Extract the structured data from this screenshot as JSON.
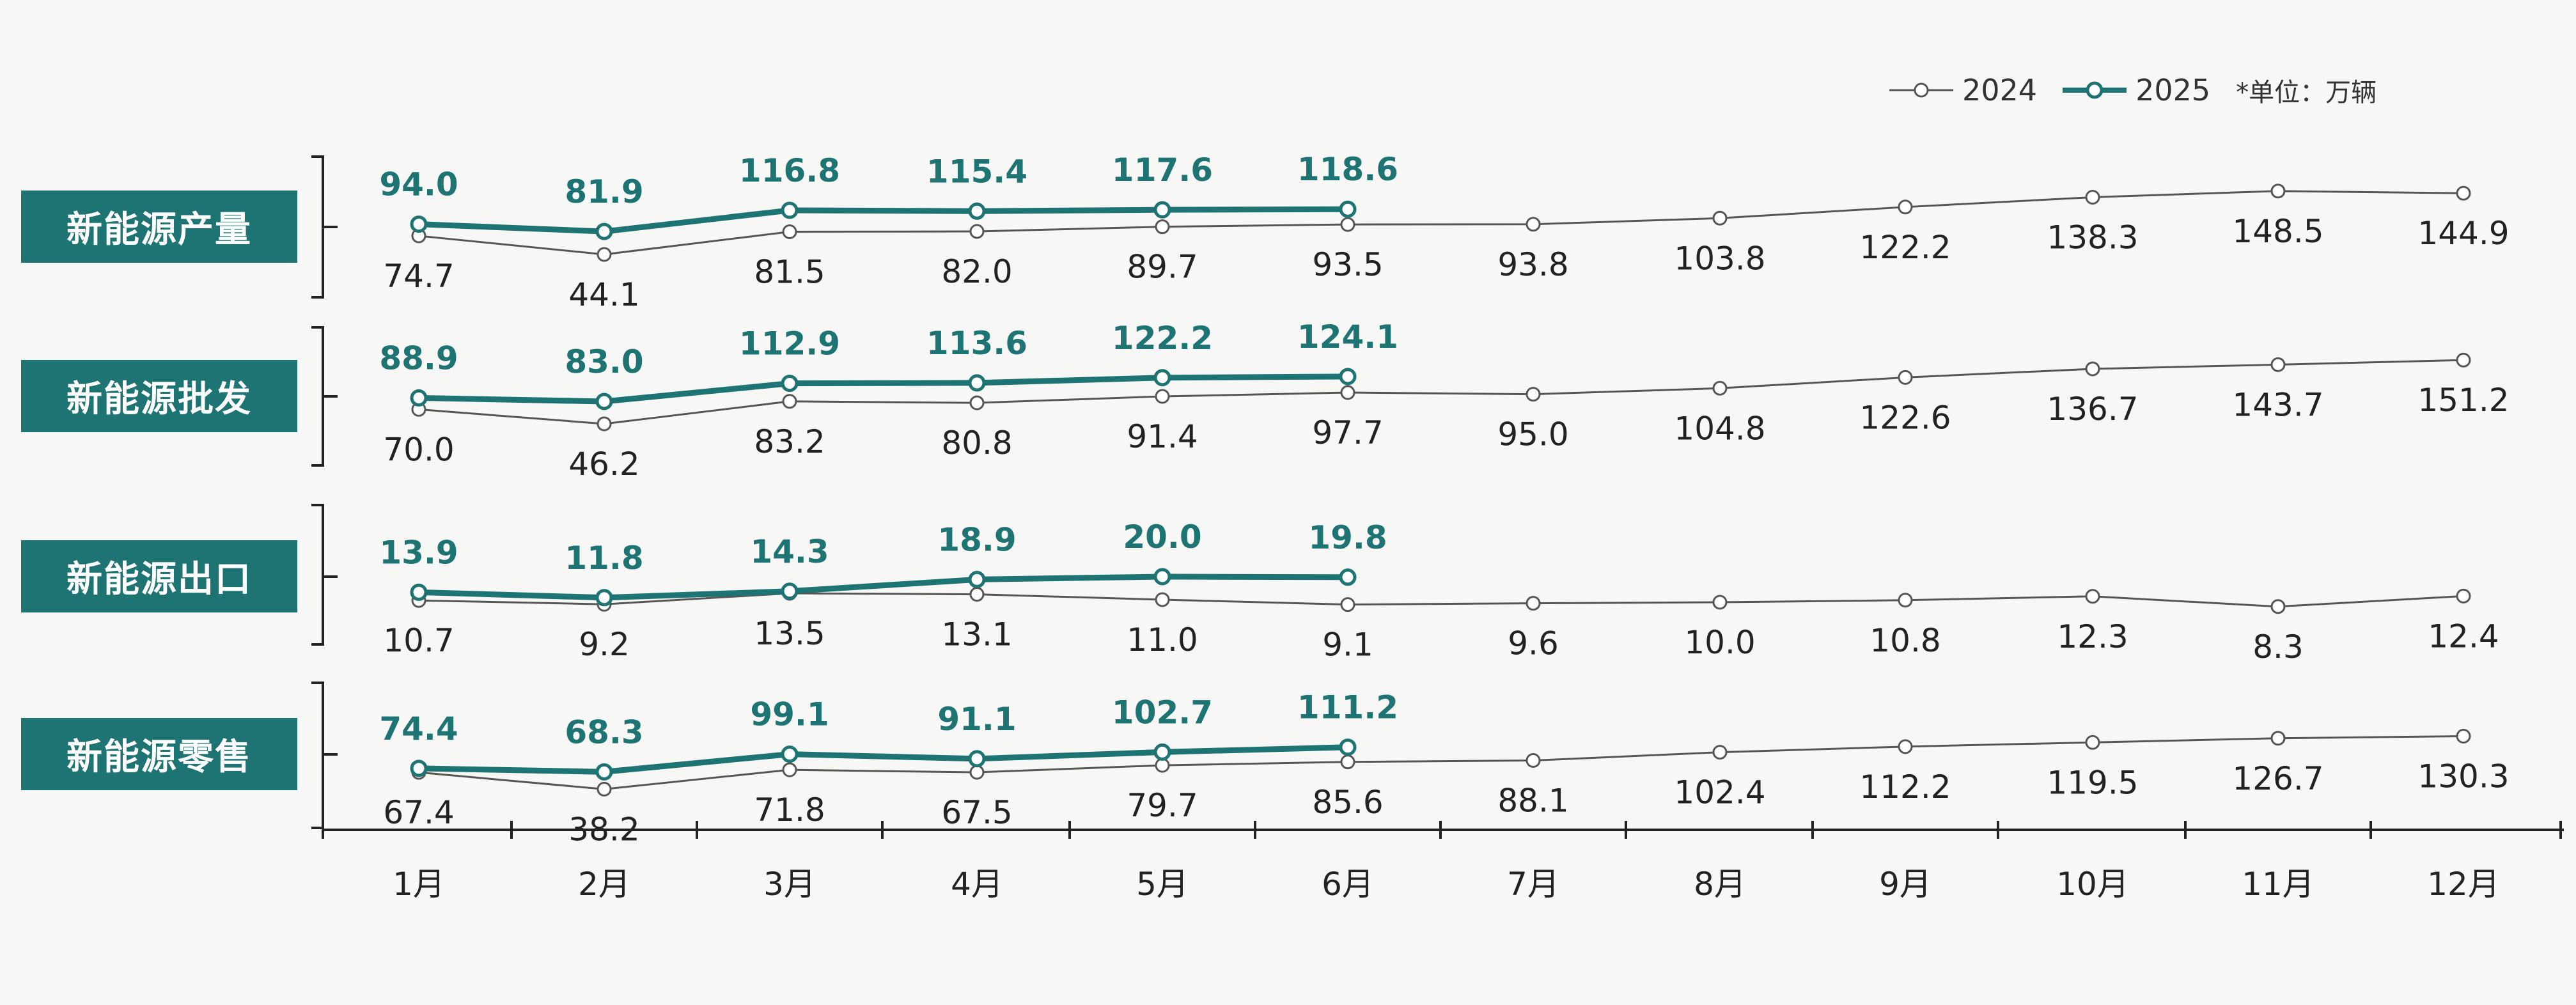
{
  "legend": {
    "s2024": "2024",
    "s2025": "2025",
    "unit": "*单位：万辆"
  },
  "colors": {
    "s2024": "#555555",
    "s2025": "#1e7373",
    "label_bg": "#1e7373"
  },
  "chart_data": {
    "type": "line",
    "x": [
      "1月",
      "2月",
      "3月",
      "4月",
      "5月",
      "6月",
      "7月",
      "8月",
      "9月",
      "10月",
      "11月",
      "12月"
    ],
    "panels": [
      {
        "label": "新能源产量",
        "series": [
          {
            "name": "2024",
            "values": [
              74.7,
              44.1,
              81.5,
              82.0,
              89.7,
              93.5,
              93.8,
              103.8,
              122.2,
              138.3,
              148.5,
              144.9
            ]
          },
          {
            "name": "2025",
            "values": [
              94.0,
              81.9,
              116.8,
              115.4,
              117.6,
              118.6
            ]
          }
        ]
      },
      {
        "label": "新能源批发",
        "series": [
          {
            "name": "2024",
            "values": [
              70.0,
              46.2,
              83.2,
              80.8,
              91.4,
              97.7,
              95.0,
              104.8,
              122.6,
              136.7,
              143.7,
              151.2
            ]
          },
          {
            "name": "2025",
            "values": [
              88.9,
              83.0,
              112.9,
              113.6,
              122.2,
              124.1
            ]
          }
        ]
      },
      {
        "label": "新能源出口",
        "series": [
          {
            "name": "2024",
            "values": [
              10.7,
              9.2,
              13.5,
              13.1,
              11.0,
              9.1,
              9.6,
              10.0,
              10.8,
              12.3,
              8.3,
              12.4
            ]
          },
          {
            "name": "2025",
            "values": [
              13.9,
              11.8,
              14.3,
              18.9,
              20.0,
              19.8
            ]
          }
        ]
      },
      {
        "label": "新能源零售",
        "series": [
          {
            "name": "2024",
            "values": [
              67.4,
              38.2,
              71.8,
              67.5,
              79.7,
              85.6,
              88.1,
              102.4,
              112.2,
              119.5,
              126.7,
              130.3
            ]
          },
          {
            "name": "2025",
            "values": [
              74.4,
              68.3,
              99.1,
              91.1,
              102.7,
              111.2
            ]
          }
        ]
      }
    ]
  }
}
